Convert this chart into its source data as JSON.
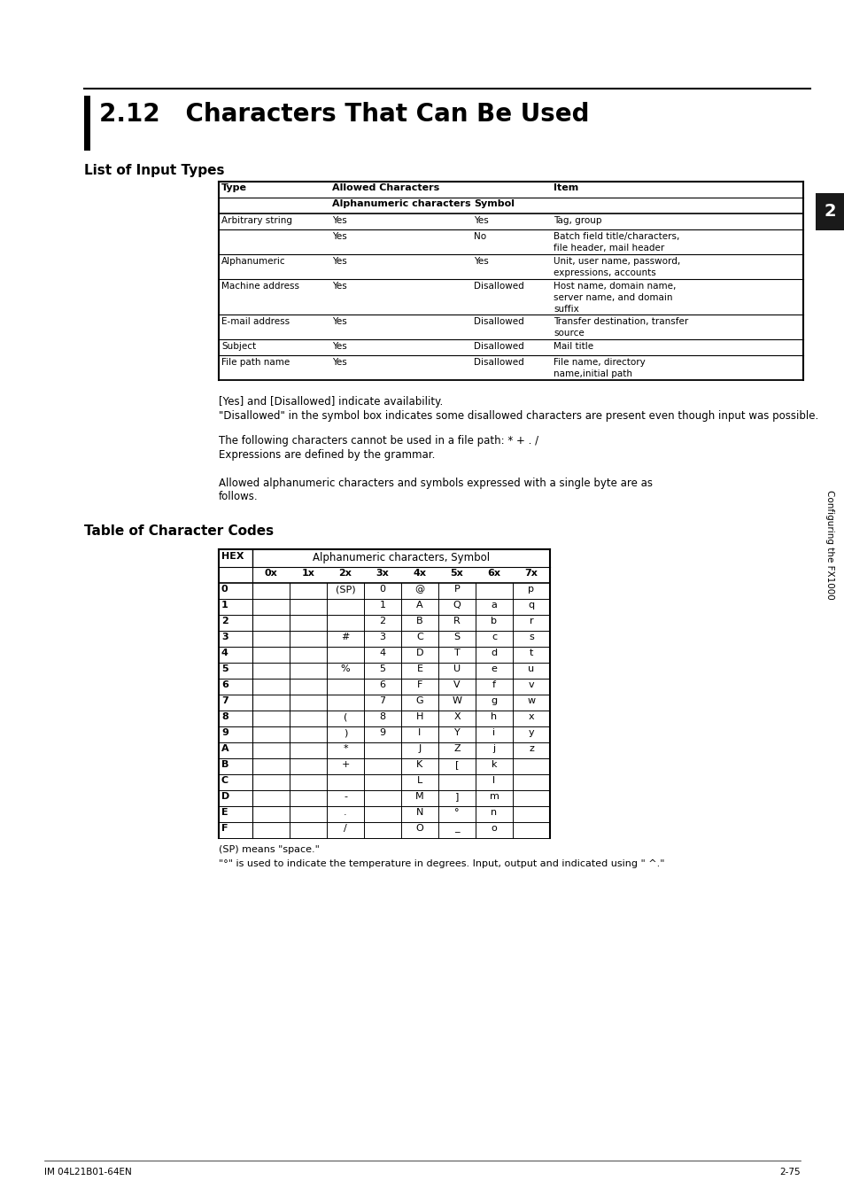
{
  "title": "2.12   Characters That Can Be Used",
  "section1_title": "List of Input Types",
  "section2_title": "Table of Character Codes",
  "sidebar_text": "Configuring the FX1000",
  "sidebar_number": "2",
  "footer_left": "IM 04L21B01-64EN",
  "footer_right": "2-75",
  "note_lines": [
    "[Yes] and [Disallowed] indicate availability.",
    "\"Disallowed\" in the symbol box indicates some disallowed characters are present even though input was possible.",
    "The following characters cannot be used in a file path: * + . /",
    "Expressions are defined by the grammar."
  ],
  "para_line1": "Allowed alphanumeric characters and symbols expressed with a single byte are as",
  "para_line2": "follows.",
  "char_table_header": "Alphanumeric characters, Symbol",
  "char_table_col_headers": [
    "0x",
    "1x",
    "2x",
    "3x",
    "4x",
    "5x",
    "6x",
    "7x"
  ],
  "char_table_row_headers": [
    "0",
    "1",
    "2",
    "3",
    "4",
    "5",
    "6",
    "7",
    "8",
    "9",
    "A",
    "B",
    "C",
    "D",
    "E",
    "F"
  ],
  "char_table_data": [
    [
      "",
      "",
      "(SP)",
      "0",
      "@",
      "P",
      "",
      "p"
    ],
    [
      "",
      "",
      "",
      "1",
      "A",
      "Q",
      "a",
      "q"
    ],
    [
      "",
      "",
      "",
      "2",
      "B",
      "R",
      "b",
      "r"
    ],
    [
      "",
      "",
      "#",
      "3",
      "C",
      "S",
      "c",
      "s"
    ],
    [
      "",
      "",
      "",
      "4",
      "D",
      "T",
      "d",
      "t"
    ],
    [
      "",
      "",
      "%",
      "5",
      "E",
      "U",
      "e",
      "u"
    ],
    [
      "",
      "",
      "",
      "6",
      "F",
      "V",
      "f",
      "v"
    ],
    [
      "",
      "",
      "",
      "7",
      "G",
      "W",
      "g",
      "w"
    ],
    [
      "",
      "",
      "(",
      "8",
      "H",
      "X",
      "h",
      "x"
    ],
    [
      "",
      "",
      ")",
      "9",
      "I",
      "Y",
      "i",
      "y"
    ],
    [
      "",
      "",
      "*",
      "",
      "J",
      "Z",
      "j",
      "z"
    ],
    [
      "",
      "",
      "+",
      "",
      "K",
      "[",
      "k",
      ""
    ],
    [
      "",
      "",
      "",
      "",
      "L",
      "",
      "l",
      ""
    ],
    [
      "",
      "",
      "-",
      "",
      "M",
      "]",
      "m",
      ""
    ],
    [
      "",
      "",
      ".",
      "",
      "N",
      "°",
      "n",
      ""
    ],
    [
      "",
      "",
      "/",
      "",
      "O",
      "_",
      "o",
      ""
    ]
  ],
  "char_table_footnote1": "(SP) means \"space.\"",
  "char_table_footnote2": "\"°\" is used to indicate the temperature in degrees. Input, output and indicated using \" ^.\"",
  "bg_color": "#ffffff",
  "sidebar_bg": "#1a1a1a"
}
